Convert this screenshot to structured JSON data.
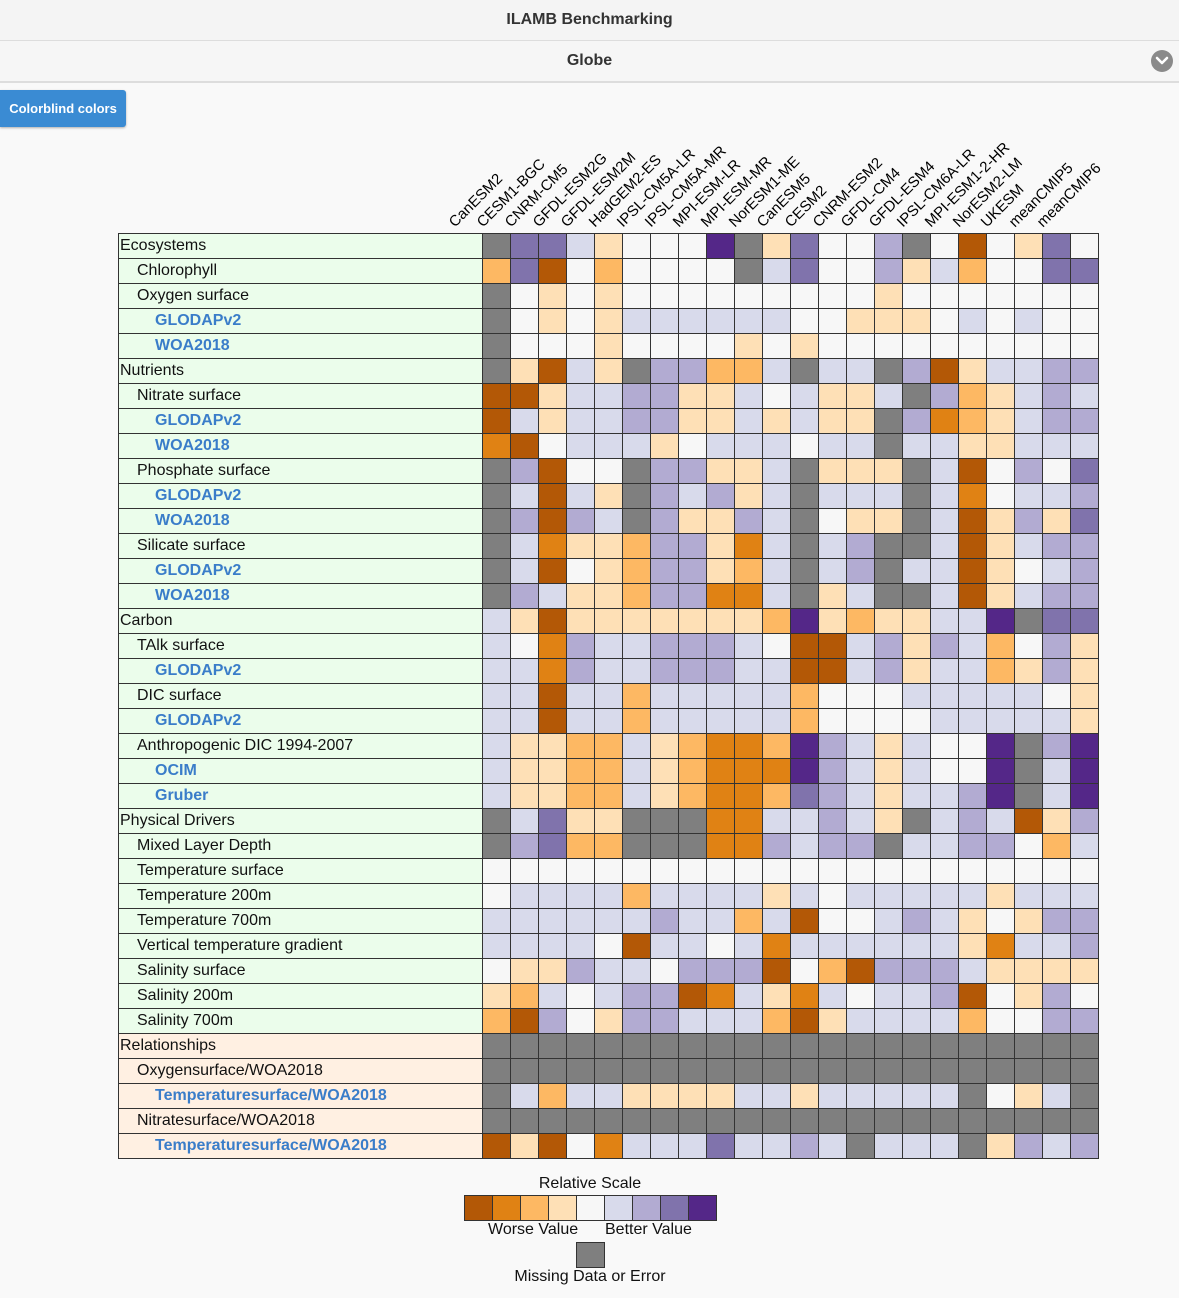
{
  "header": {
    "title": "ILAMB Benchmarking"
  },
  "subheader": {
    "title": "Globe",
    "toggle_icon": "chevron-down-icon"
  },
  "toolbar": {
    "colorblind_label": "Colorblind colors"
  },
  "colors": {
    "section_ecosystem": "#ebfdeb",
    "section_relationship": "#fff0e2",
    "palette": [
      "#b35806",
      "#e08214",
      "#fdb863",
      "#fee0b6",
      "#f7f7f7",
      "#d8daeb",
      "#b2abd2",
      "#8073ac",
      "#542788",
      "#7f7f7f"
    ]
  },
  "models": [
    "CanESM2",
    "CESM1-BGC",
    "CNRM-CM5",
    "GFDL-ESM2G",
    "GFDL-ESM2M",
    "HadGEM2-ES",
    "IPSL-CM5A-LR",
    "IPSL-CM5A-MR",
    "MPI-ESM-LR",
    "MPI-ESM-MR",
    "NorESM1-ME",
    "CanESM5",
    "CESM2",
    "CNRM-ESM2",
    "GFDL-CM4",
    "GFDL-ESM4",
    "IPSL-CM6A-LR",
    "MPI-ESM1-2-HR",
    "NorESM2-LM",
    "UKESM",
    "meanCMIP5",
    "meanCMIP6"
  ],
  "rows": [
    {
      "label": "Ecosystems",
      "level": 0,
      "section": "eco",
      "cells": "9775344489374469404374"
    },
    {
      "label": "Chlorophyll",
      "level": 1,
      "section": "eco",
      "cells": "2704244449574463524477"
    },
    {
      "label": "Oxygen surface",
      "level": 1,
      "section": "eco",
      "cells": "9434344444444434444444"
    },
    {
      "label": "GLODAPv2",
      "level": 2,
      "section": "eco",
      "cells": "9434355555544333454544"
    },
    {
      "label": "WOA2018",
      "level": 2,
      "section": "eco",
      "cells": "9444344443434444444444"
    },
    {
      "label": "Nutrients",
      "level": 0,
      "section": "eco",
      "cells": "9305396622595596035566"
    },
    {
      "label": "Nitrate surface",
      "level": 1,
      "section": "eco",
      "cells": "0035566335453359623565"
    },
    {
      "label": "GLODAPv2",
      "level": 2,
      "section": "eco",
      "cells": "0535566335353396123566"
    },
    {
      "label": "WOA2018",
      "level": 2,
      "section": "eco",
      "cells": "1045553455545595533555"
    },
    {
      "label": "Phosphate surface",
      "level": 1,
      "section": "eco",
      "cells": "9604496633593339504647"
    },
    {
      "label": "GLODAPv2",
      "level": 2,
      "section": "eco",
      "cells": "9505396563595559514556"
    },
    {
      "label": "WOA2018",
      "level": 2,
      "section": "eco",
      "cells": "9606596336594339503637"
    },
    {
      "label": "Silicate surface",
      "level": 1,
      "section": "eco",
      "cells": "9513326631595699503566"
    },
    {
      "label": "GLODAPv2",
      "level": 2,
      "section": "eco",
      "cells": "9504326632595695503456"
    },
    {
      "label": "WOA2018",
      "level": 2,
      "section": "eco",
      "cells": "9653326611593599503566"
    },
    {
      "label": "Carbon",
      "level": 0,
      "section": "eco",
      "cells": "5303333333283233558977"
    },
    {
      "label": "TAlk surface",
      "level": 1,
      "section": "eco",
      "cells": "5416556665400563652463"
    },
    {
      "label": "GLODAPv2",
      "level": 2,
      "section": "eco",
      "cells": "5516556665500563552363"
    },
    {
      "label": "DIC surface",
      "level": 1,
      "section": "eco",
      "cells": "5505525555524445555543"
    },
    {
      "label": "GLODAPv2",
      "level": 2,
      "section": "eco",
      "cells": "5505525555524444555553"
    },
    {
      "label": "Anthropogenic DIC 1994-2007",
      "level": 1,
      "section": "eco",
      "cells": "5332253211286535448968"
    },
    {
      "label": "OCIM",
      "level": 2,
      "section": "eco",
      "cells": "5332253211186535448958"
    },
    {
      "label": "Gruber",
      "level": 2,
      "section": "eco",
      "cells": "5332253211276535568958"
    },
    {
      "label": "Physical Drivers",
      "level": 0,
      "section": "eco",
      "cells": "9573399911556539565036"
    },
    {
      "label": "Mixed Layer Depth",
      "level": 1,
      "section": "eco",
      "cells": "9672299911656695566425"
    },
    {
      "label": "Temperature surface",
      "level": 1,
      "section": "eco",
      "cells": "4444444444444444444444"
    },
    {
      "label": "Temperature 200m",
      "level": 1,
      "section": "eco",
      "cells": "4555525555354555553555"
    },
    {
      "label": "Temperature 700m",
      "level": 1,
      "section": "eco",
      "cells": "5555556552504456534366"
    },
    {
      "label": "Vertical temperature gradient",
      "level": 1,
      "section": "eco",
      "cells": "5555405545155555531556"
    },
    {
      "label": "Salinity surface",
      "level": 1,
      "section": "eco",
      "cells": "4336554666042066653333"
    },
    {
      "label": "Salinity 200m",
      "level": 1,
      "section": "eco",
      "cells": "3254566015315455604364"
    },
    {
      "label": "Salinity 700m",
      "level": 1,
      "section": "eco",
      "cells": "2064366555203555524466"
    },
    {
      "label": "Relationships",
      "level": 0,
      "section": "rel",
      "cells": "9999999999999999999999"
    },
    {
      "label": "Oxygensurface/WOA2018",
      "level": 1,
      "section": "rel",
      "cells": "9999999999999999999999"
    },
    {
      "label": "Temperaturesurface/WOA2018",
      "level": 2,
      "section": "rel",
      "cells": "9525533335535555594359"
    },
    {
      "label": "Nitratesurface/WOA2018",
      "level": 1,
      "section": "rel",
      "cells": "9999999999999999999999"
    },
    {
      "label": "Temperaturesurface/WOA2018",
      "level": 2,
      "section": "rel",
      "cells": "0304155575565955593656"
    }
  ],
  "legend": {
    "title": "Relative Scale",
    "worse": "Worse Value",
    "better": "Better Value",
    "missing": "Missing Data or Error"
  }
}
